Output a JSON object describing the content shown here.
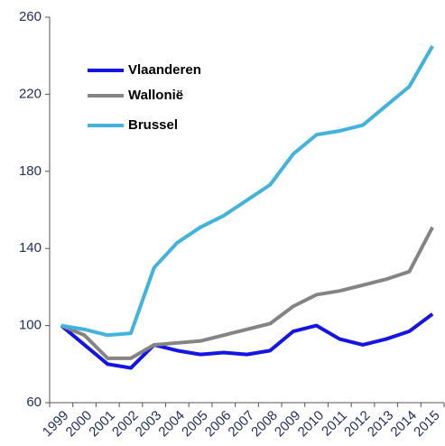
{
  "chart_data": {
    "type": "line",
    "categories": [
      "1999",
      "2000",
      "2001",
      "2002",
      "2003",
      "2004",
      "2005",
      "2006",
      "2007",
      "2008",
      "2009",
      "2010",
      "2011",
      "2012",
      "2013",
      "2014",
      "2015"
    ],
    "series": [
      {
        "name": "Vlaanderen",
        "color": "#1414e6",
        "values": [
          100,
          90,
          80,
          78,
          90,
          87,
          85,
          86,
          85,
          87,
          97,
          100,
          93,
          90,
          93,
          97,
          106
        ]
      },
      {
        "name": "Wallonië",
        "color": "#848484",
        "values": [
          100,
          95,
          83,
          83,
          90,
          91,
          92,
          95,
          98,
          101,
          110,
          116,
          118,
          121,
          124,
          128,
          151
        ]
      },
      {
        "name": "Brussel",
        "color": "#41b3dc",
        "values": [
          100,
          98,
          95,
          96,
          130,
          143,
          151,
          157,
          165,
          173,
          189,
          199,
          201,
          204,
          214,
          224,
          245
        ]
      }
    ],
    "ylim": [
      60,
      260
    ],
    "yticks": [
      60,
      100,
      140,
      180,
      220,
      260
    ],
    "grid": false,
    "legend": "top-left"
  }
}
